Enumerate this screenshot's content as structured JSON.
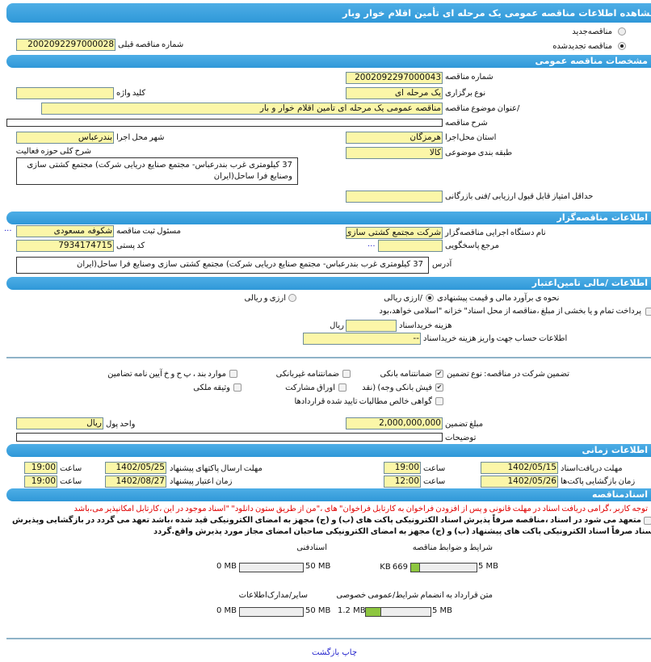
{
  "title": "مشاهده اطلاعات مناقصه  عمومی یک مرحله ای تأمین اقلام خوار وبار",
  "tender_type": {
    "new_label": "مناقصه‌جدید",
    "renewed_label": "مناقصه تجدیدشده",
    "selected": "renewed",
    "prev_number_label": "شماره  مناقصه قبلی",
    "prev_number": "2002092297000028"
  },
  "general": {
    "header": "مشخصات مناقصه عمومی",
    "number_label": "شماره مناقصه",
    "number": "2002092297000043",
    "holding_type_label": "نوع برگزاری",
    "holding_type": "یک مرحله ای",
    "keyword_label": "کلید واژه",
    "keyword": "",
    "subject_label": "/عنوان  موضوع مناقصه",
    "subject": "مناقصه عمومی یک مرحله ای تأمین اقلام خوار و بار",
    "desc_label": "شرح مناقصه",
    "desc": "",
    "province_label": "استان محل‌اجرا",
    "province": "هرمزگان",
    "city_label": "شهر محل اجرا",
    "city": "بندرعباس",
    "category_label": "طبقه بندی موضوعی",
    "category": "کالا",
    "activity_label": "شرح کلی حوزه فعالیت",
    "activity": "37  کیلومتری غرب بندرعباس- مجتمع  صنایع  دریایی شرکت) مجتمع  کشتی سازی  وصنایع فرا ساحل(ایران",
    "min_score_label": "حداقل امتیاز قابل قبول ارزیابی /فنی بازرگانی",
    "min_score": ""
  },
  "organizer": {
    "header": "اطلاعات مناقصه‌گزار",
    "org_label": "نام دستگاه اجرایی مناقصه‌گزار",
    "org": "شرکت مجتمع کشتی سازی",
    "registrar_label": "مسئول ثبت مناقصه",
    "registrar": "شکوفه مسعودی",
    "ref_label": "مرجع پاسخگویی",
    "ref": "",
    "postal_label": "کد پستی",
    "postal": "7934174715",
    "address_label": "آدرس",
    "address": "37  کیلومتری غرب بندرعباس- مجتمع  صنایع  دریایی شرکت) مجتمع  کشتی سازی  وصنایع فرا ساحل(ایران",
    "more": "..."
  },
  "finance": {
    "header": "اطلاعات /مالی تامین‌اعتبار",
    "estimate_label": "نحوه ی برآورد مالی و قیمت پیشنهادی",
    "opt_rial": "/ارزی ریالی",
    "opt_both": "ارزی و ریالی",
    "treasury_text": "پرداخت تمام و یا بخشی از مبلغ ،مناقصه از محل اسناد\" خزانه \"اسلامی خواهد،بود",
    "doc_cost_label": "هزینه خریداسناد",
    "doc_cost": "",
    "doc_cost_unit": "ریال",
    "account_label": "اطلاعات حساب جهت واریز هزینه خریداسناد",
    "account": "--"
  },
  "guarantee": {
    "label": "تضمین شرکت در مناقصه:   نوع    تضمین",
    "options": [
      {
        "label": "ضمانتنامه  بانکی",
        "checked": true
      },
      {
        "label": "ضمانتنامه  غیربانکی",
        "checked": false
      },
      {
        "label": "موارد  بند ، پ ح و خ آیین نامه تضامین",
        "checked": false
      },
      {
        "label": "فیش  بانکی وجه) (نقد",
        "checked": true
      },
      {
        "label": "اوراق  مشارکت",
        "checked": false
      },
      {
        "label": "وثیقه ملکی",
        "checked": false
      },
      {
        "label": "گواهی  خالص مطالبات تایید شده قراردادها",
        "checked": false
      }
    ],
    "amount_label": "مبلغ تضمین",
    "amount": "2,000,000,000",
    "currency_label": "واحد پول",
    "currency": "ریال",
    "notes_label": "توضیحات",
    "notes": ""
  },
  "timing": {
    "header": "اطلاعات زمانی",
    "doc_deadline_label": "مهلت  دریافت‌اسناد",
    "doc_deadline": "1402/05/15",
    "doc_deadline_time": "19:00",
    "submit_label": "مهلت     ارسال  پاکتهای پیشنهاد",
    "submit_date": "1402/05/25",
    "submit_time": "19:00",
    "open_label": "زمان  بازگشایی پاکت‌ها",
    "open_date": "1402/05/26",
    "open_time": "12:00",
    "validity_label": "زمان     اعتبار پیشنهاد",
    "validity_date": "1402/08/27",
    "validity_time": "19:00",
    "time_label": "ساعت"
  },
  "documents": {
    "header": "اسنادمناقصه",
    "notice": "توجه کاربر ،گرامی دریافت اسناد در مهلت قانونی و پس از افزودن فراخوان به کارتابل فراخوان\" های ،\"من از طریق ستون دانلود\" \"اسناد موجود در این ،کارتابل امکانپذیر می،باشد",
    "commit_line1": "متعهد می شود در اسناد ،مناقصه صرفاً پذیرش اسناد الکترونیکی پاکت های (ب) و (ج) مجهز به امضای الکترونیکی قید شده ،باشد تعهد می گردد در بازگشایی وپذیرش",
    "commit_line2": "اسناد صرفاً اسناد الکترونیکی پاکت های پیشنهاد (ب) و (ج) مجهز به امضای الکترونیکی صاحبان امضای مجاز مورد پذیرش واقع.گردد",
    "files": [
      {
        "label": "شرایط و  ضوابط مناقصه",
        "size": "669 KB",
        "max": "5 MB",
        "fraction": 0.13
      },
      {
        "label": "اسنادفنی",
        "size": "0 MB",
        "max": "50 MB",
        "fraction": 0
      },
      {
        "label": "متن قرارداد به  انضمام شرایط/عمومی خصوصی",
        "size": "1.2 MB",
        "max": "5 MB",
        "fraction": 0.24
      },
      {
        "label": "سایر/مدارک‌اطلاعات",
        "size": "0 MB",
        "max": "50 MB",
        "fraction": 0
      }
    ]
  },
  "footer": {
    "print": "چاپ",
    "back": "بازگشت"
  },
  "colors": {
    "header_bar": "#3aa0dd",
    "field_bg": "#fbf6a8",
    "progress_fill": "#8dc63f",
    "notice": "#e00000"
  }
}
